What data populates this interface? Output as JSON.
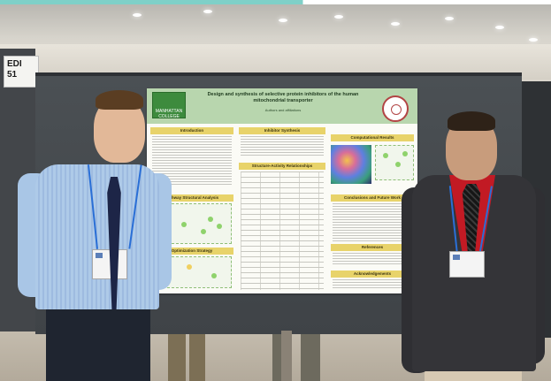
{
  "scene": {
    "left_board_card": "EDI\n51",
    "poster": {
      "title": "Design and synthesis of selective protein inhibitors of the human mitochondrial transporter",
      "authors": "Authors and affiliations",
      "logo_left": "MANHATTAN COLLEGE",
      "sections": [
        "Introduction",
        "Inhibitor Synthesis",
        "Computational Results",
        "Structure-Activity Relationships",
        "Pathway Structural Analysis",
        "Conclusions and Future Work",
        "Optimization Strategy",
        "References",
        "Acknowledgements"
      ]
    }
  },
  "colors": {
    "poster_header": "#b8d6ae",
    "section_header": "#e8d36a",
    "board": "#43464a",
    "left_shirt": "#a9c6e6",
    "right_jacket": "#2f2f33",
    "right_shirt": "#c21a24",
    "lanyard": "#2a6fd6"
  }
}
